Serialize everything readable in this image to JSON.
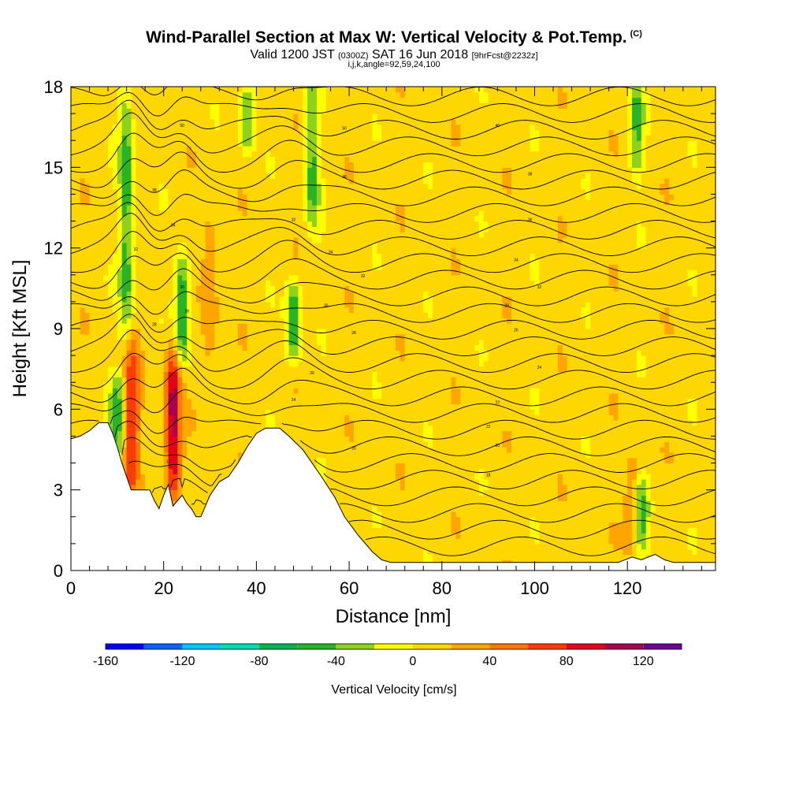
{
  "header": {
    "title": "Wind-Parallel Section at Max W: Vertical Velocity & Pot.Temp.",
    "copyright": "(C)",
    "subtitle_a": "Valid 1200 JST",
    "subtitle_b": "(0300Z)",
    "subtitle_c": "SAT 16 Jun 2018",
    "subtitle_d": "[9hrFcst@2232z]",
    "subtitle2": "i,j,k,angle=92,59,24,100"
  },
  "chart_data": {
    "type": "heatmap",
    "title": "Wind-Parallel Section at Max W: Vertical Velocity & Pot.Temp.",
    "xlabel": "Distance [nm]",
    "ylabel": "Height [Kft MSL]",
    "xlim": [
      0,
      139
    ],
    "ylim": [
      0,
      18
    ],
    "x_ticks": [
      "0",
      "20",
      "40",
      "60",
      "80",
      "100",
      "120"
    ],
    "y_ticks": [
      "0",
      "3",
      "6",
      "9",
      "12",
      "15",
      "18"
    ],
    "grid": false,
    "colorbar": {
      "label": "Vertical Velocity [cm/s]",
      "tick_labels": [
        "-160",
        "-120",
        "-80",
        "-40",
        "0",
        "40",
        "80",
        "120"
      ],
      "tick_values": [
        -160,
        -120,
        -80,
        -40,
        0,
        40,
        80,
        120
      ],
      "range": [
        -160,
        140
      ],
      "bin_width": 20,
      "colors": [
        "#0000ff",
        "#0064ff",
        "#00c8ff",
        "#00dcb4",
        "#00b450",
        "#28b428",
        "#8cd21e",
        "#ffff00",
        "#ffd700",
        "#ffa500",
        "#ff7800",
        "#ff3c00",
        "#e6001e",
        "#aa0050",
        "#6e0096"
      ]
    },
    "background_value_cm_s": 10,
    "vertical_velocity_features": [
      {
        "x_center": 13,
        "height_range": [
          3,
          8.5
        ],
        "peak_cm_s": 80
      },
      {
        "x_center": 12,
        "height_range": [
          8.5,
          18
        ],
        "peak_cm_s": -50
      },
      {
        "x_center": 22,
        "height_range": [
          3,
          8
        ],
        "peak_cm_s": 110
      },
      {
        "x_center": 24,
        "height_range": [
          8,
          11.5
        ],
        "peak_cm_s": -60
      },
      {
        "x_center": 10,
        "height_range": [
          4.5,
          7
        ],
        "peak_cm_s": -45
      },
      {
        "x_center": 30,
        "height_range": [
          8,
          13
        ],
        "peak_cm_s": 40
      },
      {
        "x_center": 48,
        "height_range": [
          8,
          10.5
        ],
        "peak_cm_s": -55
      },
      {
        "x_center": 52,
        "height_range": [
          13,
          18
        ],
        "peak_cm_s": -45
      },
      {
        "x_center": 38,
        "height_range": [
          16,
          18
        ],
        "peak_cm_s": -40
      },
      {
        "x_center": 123,
        "height_range": [
          1,
          3
        ],
        "peak_cm_s": -45
      },
      {
        "x_center": 121,
        "height_range": [
          1,
          4
        ],
        "peak_cm_s": 40
      },
      {
        "x_center": 122,
        "height_range": [
          15,
          18
        ],
        "peak_cm_s": -40
      }
    ],
    "potential_temperature_contour_labels": [
      {
        "text": "50",
        "x": 24,
        "y": 16.5
      },
      {
        "text": "50",
        "x": 59,
        "y": 16.4
      },
      {
        "text": "40",
        "x": 92,
        "y": 16.5
      },
      {
        "text": "36",
        "x": 59,
        "y": 14.6
      },
      {
        "text": "38",
        "x": 99,
        "y": 14.7
      },
      {
        "text": "38",
        "x": 18,
        "y": 14.1
      },
      {
        "text": "36",
        "x": 99,
        "y": 13.0
      },
      {
        "text": "34",
        "x": 22,
        "y": 12.8
      },
      {
        "text": "32",
        "x": 48,
        "y": 13.0
      },
      {
        "text": "34",
        "x": 56,
        "y": 11.8
      },
      {
        "text": "34",
        "x": 96,
        "y": 11.5
      },
      {
        "text": "32",
        "x": 14,
        "y": 11.9
      },
      {
        "text": "32",
        "x": 63,
        "y": 10.9
      },
      {
        "text": "32",
        "x": 101,
        "y": 10.5
      },
      {
        "text": "30",
        "x": 24,
        "y": 10.5
      },
      {
        "text": "28",
        "x": 25,
        "y": 9.6
      },
      {
        "text": "30",
        "x": 55,
        "y": 9.8
      },
      {
        "text": "28",
        "x": 94,
        "y": 9.8
      },
      {
        "text": "28",
        "x": 18,
        "y": 9.1
      },
      {
        "text": "28",
        "x": 61,
        "y": 8.8
      },
      {
        "text": "26",
        "x": 96,
        "y": 8.9
      },
      {
        "text": "26",
        "x": 52,
        "y": 7.3
      },
      {
        "text": "24",
        "x": 101,
        "y": 7.5
      },
      {
        "text": "24",
        "x": 48,
        "y": 6.3
      },
      {
        "text": "22",
        "x": 92,
        "y": 6.2
      },
      {
        "text": "22",
        "x": 90,
        "y": 5.3
      },
      {
        "text": "20",
        "x": 92,
        "y": 4.6
      },
      {
        "text": "20",
        "x": 61,
        "y": 4.5
      },
      {
        "text": "18",
        "x": 90,
        "y": 3.5
      },
      {
        "text": "12",
        "x": 21,
        "y": 4.0
      }
    ]
  }
}
